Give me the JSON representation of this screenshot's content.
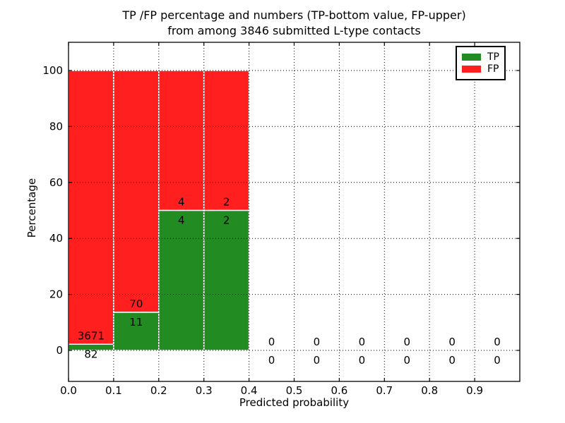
{
  "figure": {
    "background": "#ffffff",
    "title_line1": "TP /FP percentage and numbers (TP-bottom value, FP-upper)",
    "title_line2": "from among 3846 submitted L-type contacts",
    "xlabel": "Predicted probability",
    "ylabel": "Percentage"
  },
  "chart_data": {
    "type": "bar",
    "stacked": true,
    "title": "TP /FP percentage and numbers (TP-bottom value, FP-upper) from among 3846 submitted L-type contacts",
    "xlabel": "Predicted probability",
    "ylabel": "Percentage",
    "total_contacts": 3846,
    "xlim": [
      0.0,
      1.0
    ],
    "ylim": [
      -11,
      110
    ],
    "x_tick_values": [
      0.0,
      0.1,
      0.2,
      0.3,
      0.4,
      0.5,
      0.6,
      0.7,
      0.8,
      0.9
    ],
    "x_tick_labels": [
      "0.0",
      "0.1",
      "0.2",
      "0.3",
      "0.4",
      "0.5",
      "0.6",
      "0.7",
      "0.8",
      "0.9"
    ],
    "y_tick_values": [
      0,
      20,
      40,
      60,
      80,
      100
    ],
    "y_tick_labels": [
      "0",
      "20",
      "40",
      "60",
      "80",
      "100"
    ],
    "grid": {
      "visible": true,
      "linestyle": "dotted",
      "color": "#000000"
    },
    "legend": {
      "position": "upper right",
      "entries": [
        "TP",
        "FP"
      ]
    },
    "series": [
      {
        "name": "TP",
        "color": "#228b22"
      },
      {
        "name": "FP",
        "color": "#ff1f1f"
      }
    ],
    "bins": [
      {
        "range": [
          0.0,
          0.1
        ],
        "tp_count": 82,
        "fp_count": 3671,
        "tp_pct": 2.2,
        "fp_pct": 97.8
      },
      {
        "range": [
          0.1,
          0.2
        ],
        "tp_count": 11,
        "fp_count": 70,
        "tp_pct": 13.6,
        "fp_pct": 86.4
      },
      {
        "range": [
          0.2,
          0.3
        ],
        "tp_count": 4,
        "fp_count": 4,
        "tp_pct": 50,
        "fp_pct": 50
      },
      {
        "range": [
          0.3,
          0.4
        ],
        "tp_count": 2,
        "fp_count": 2,
        "tp_pct": 50,
        "fp_pct": 50
      },
      {
        "range": [
          0.4,
          0.5
        ],
        "tp_count": 0,
        "fp_count": 0,
        "tp_pct": 0,
        "fp_pct": 0
      },
      {
        "range": [
          0.5,
          0.6
        ],
        "tp_count": 0,
        "fp_count": 0,
        "tp_pct": 0,
        "fp_pct": 0
      },
      {
        "range": [
          0.6,
          0.7
        ],
        "tp_count": 0,
        "fp_count": 0,
        "tp_pct": 0,
        "fp_pct": 0
      },
      {
        "range": [
          0.7,
          0.8
        ],
        "tp_count": 0,
        "fp_count": 0,
        "tp_pct": 0,
        "fp_pct": 0
      },
      {
        "range": [
          0.8,
          0.9
        ],
        "tp_count": 0,
        "fp_count": 0,
        "tp_pct": 0,
        "fp_pct": 0
      },
      {
        "range": [
          0.9,
          1.0
        ],
        "tp_count": 0,
        "fp_count": 0,
        "tp_pct": 0,
        "fp_pct": 0
      }
    ]
  }
}
